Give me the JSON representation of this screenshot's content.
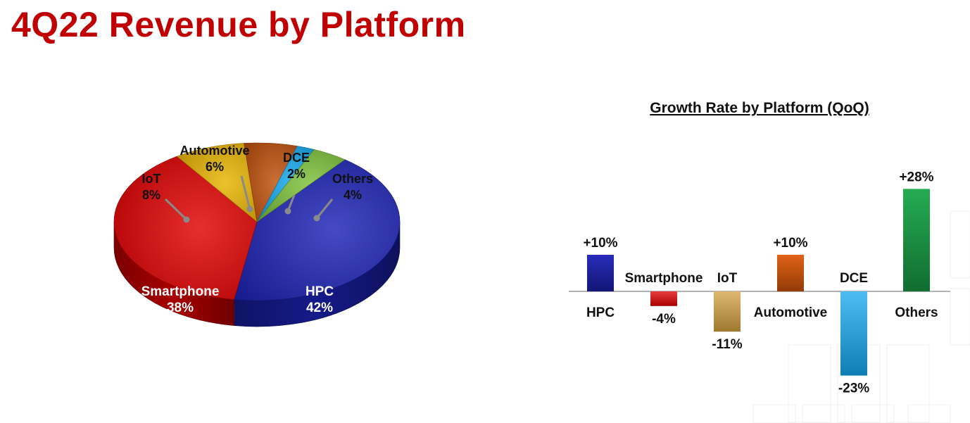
{
  "page": {
    "title": "4Q22 Revenue by Platform"
  },
  "chart_data": [
    {
      "type": "pie",
      "title": "",
      "categories": [
        "HPC",
        "Smartphone",
        "IoT",
        "Automotive",
        "DCE",
        "Others"
      ],
      "values": [
        42,
        38,
        8,
        6,
        2,
        4
      ],
      "value_labels": [
        "42%",
        "38%",
        "8%",
        "6%",
        "2%",
        "4%"
      ],
      "colors": [
        "#1c22b6",
        "#e00000",
        "#e8b400",
        "#c0500a",
        "#12a8ee",
        "#7cc23a"
      ],
      "legend": "none"
    },
    {
      "type": "bar",
      "title": "Growth Rate by Platform (QoQ)",
      "categories": [
        "HPC",
        "Smartphone",
        "IoT",
        "Automotive",
        "DCE",
        "Others"
      ],
      "values": [
        10,
        -4,
        -11,
        10,
        -23,
        28
      ],
      "value_labels": [
        "+10%",
        "-4%",
        "-11%",
        "+10%",
        "-23%",
        "+28%"
      ],
      "colors": [
        "#1c22b6",
        "#e00000",
        "#d4a040",
        "#e05a0a",
        "#12a8ee",
        "#1aa84a"
      ],
      "xlabel": "",
      "ylabel": "",
      "grid": false,
      "legend": "none"
    }
  ]
}
